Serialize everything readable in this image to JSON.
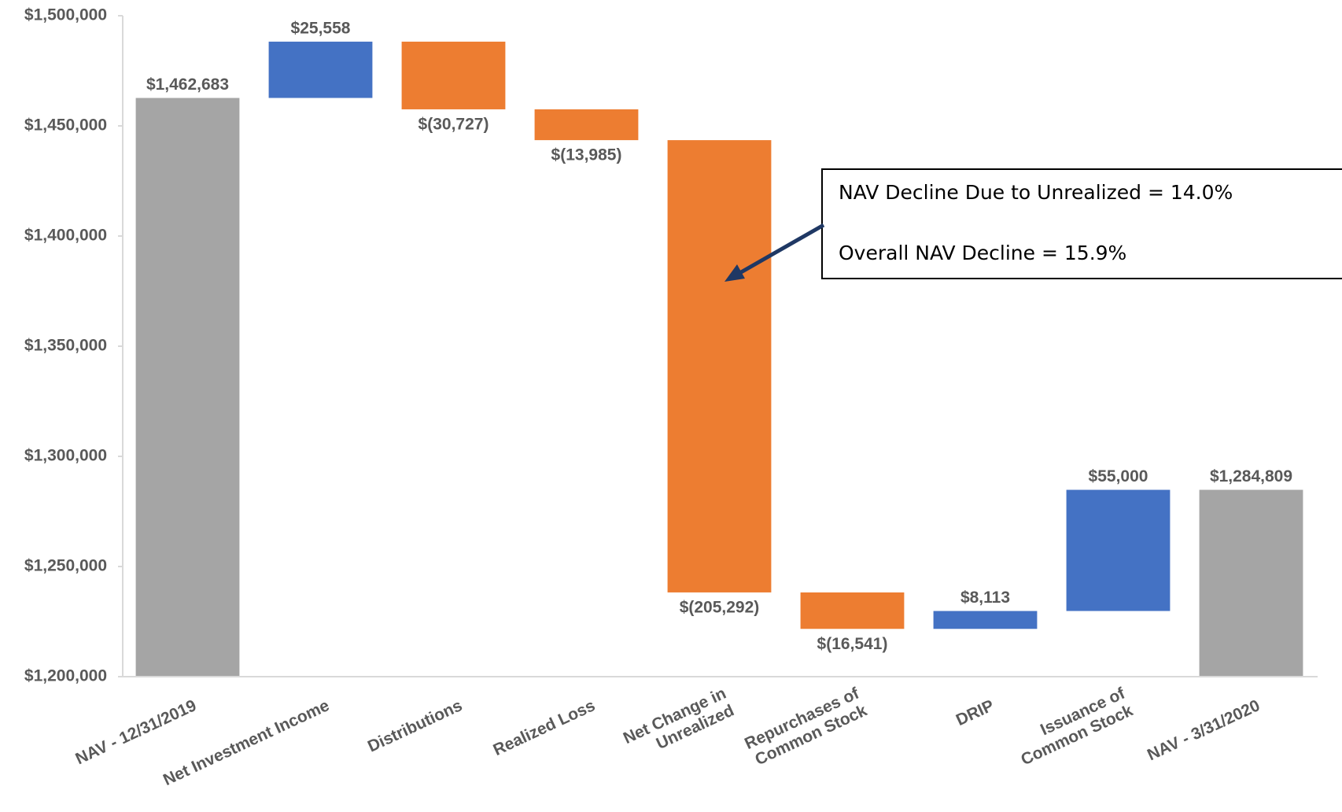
{
  "chart_data": {
    "type": "waterfall",
    "categories": [
      "NAV - 12/31/2019",
      "Net Investment Income",
      "Distributions",
      "Realized Loss",
      "Net Change in\nUnrealized",
      "Repurchases of\nCommon Stock",
      "DRIP",
      "Issuance of\nCommon Stock",
      "NAV - 3/31/2020"
    ],
    "values": [
      1462683,
      25558,
      -30727,
      -13985,
      -205292,
      -16541,
      8113,
      55000,
      1284809
    ],
    "value_labels": [
      "$1,462,683",
      "$25,558",
      "$(30,727)",
      "$(13,985)",
      "$(205,292)",
      "$(16,541)",
      "$8,113",
      "$55,000",
      "$1,284,809"
    ],
    "measure": [
      "total",
      "relative",
      "relative",
      "relative",
      "relative",
      "relative",
      "relative",
      "relative",
      "total"
    ],
    "colors": {
      "total": "#a5a5a5",
      "increase": "#4472c4",
      "decrease": "#ed7d31"
    },
    "ylim": [
      1200000,
      1500000
    ],
    "yticks": [
      {
        "value": 1200000,
        "label": "$1,200,000"
      },
      {
        "value": 1250000,
        "label": "$1,250,000"
      },
      {
        "value": 1300000,
        "label": "$1,300,000"
      },
      {
        "value": 1350000,
        "label": "$1,350,000"
      },
      {
        "value": 1400000,
        "label": "$1,400,000"
      },
      {
        "value": 1450000,
        "label": "$1,450,000"
      },
      {
        "value": 1500000,
        "label": "$1,500,000"
      }
    ],
    "annotations": [
      "NAV Decline Due to Unrealized = 14.0%",
      "Overall NAV Decline = 15.9%"
    ]
  }
}
